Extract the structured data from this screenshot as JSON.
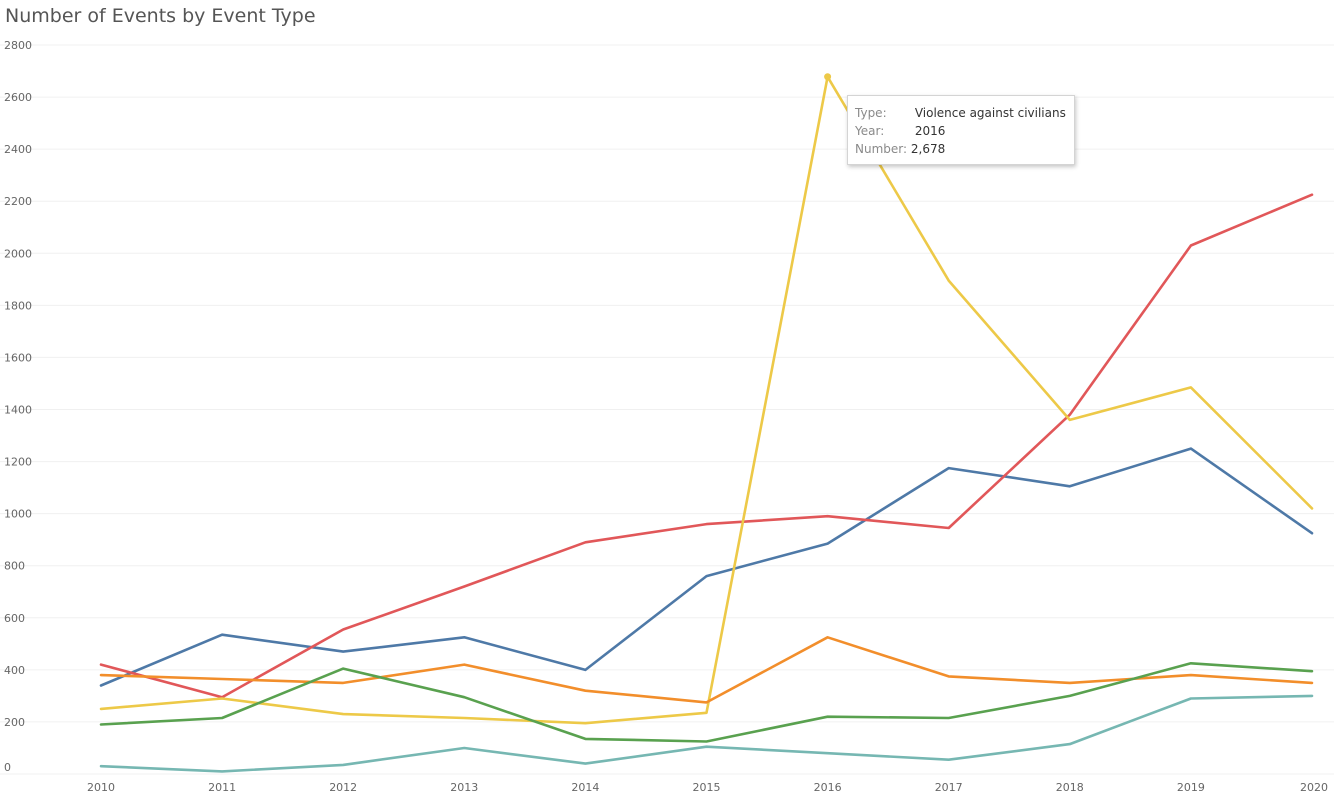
{
  "chart_data": {
    "type": "line",
    "title": "Number of Events by Event Type",
    "x": [
      "2010",
      "2011",
      "2012",
      "2013",
      "2014",
      "2015",
      "2016",
      "2017",
      "2018",
      "2019",
      "2020"
    ],
    "ylim": [
      0,
      2800
    ],
    "yticks": [
      0,
      200,
      400,
      600,
      800,
      1000,
      1200,
      1400,
      1600,
      1800,
      2000,
      2200,
      2400,
      2600,
      2800
    ],
    "grid": true,
    "series": [
      {
        "color": "#4e79a7",
        "values": [
          340,
          535,
          470,
          525,
          400,
          760,
          885,
          1175,
          1105,
          1250,
          925
        ]
      },
      {
        "color": "#e15759",
        "values": [
          420,
          295,
          555,
          720,
          890,
          960,
          990,
          945,
          1380,
          2030,
          2225
        ]
      },
      {
        "color": "#edc948",
        "values": [
          250,
          290,
          230,
          215,
          195,
          235,
          2678,
          1895,
          1360,
          1485,
          1020
        ]
      },
      {
        "color": "#f28e2b",
        "values": [
          380,
          365,
          350,
          420,
          320,
          275,
          525,
          375,
          350,
          380,
          350
        ]
      },
      {
        "color": "#59a14f",
        "values": [
          190,
          215,
          405,
          295,
          135,
          125,
          220,
          215,
          300,
          425,
          395
        ]
      },
      {
        "color": "#76b7b2",
        "values": [
          30,
          10,
          35,
          100,
          40,
          105,
          80,
          55,
          115,
          290,
          300
        ]
      }
    ],
    "highlight": {
      "series": 2,
      "index": 6
    }
  },
  "tooltip": {
    "type_key": "Type:",
    "type_value": "Violence against civilians",
    "year_key": "Year:",
    "year_value": "2016",
    "number_key": "Number:",
    "number_value": "2,678"
  }
}
